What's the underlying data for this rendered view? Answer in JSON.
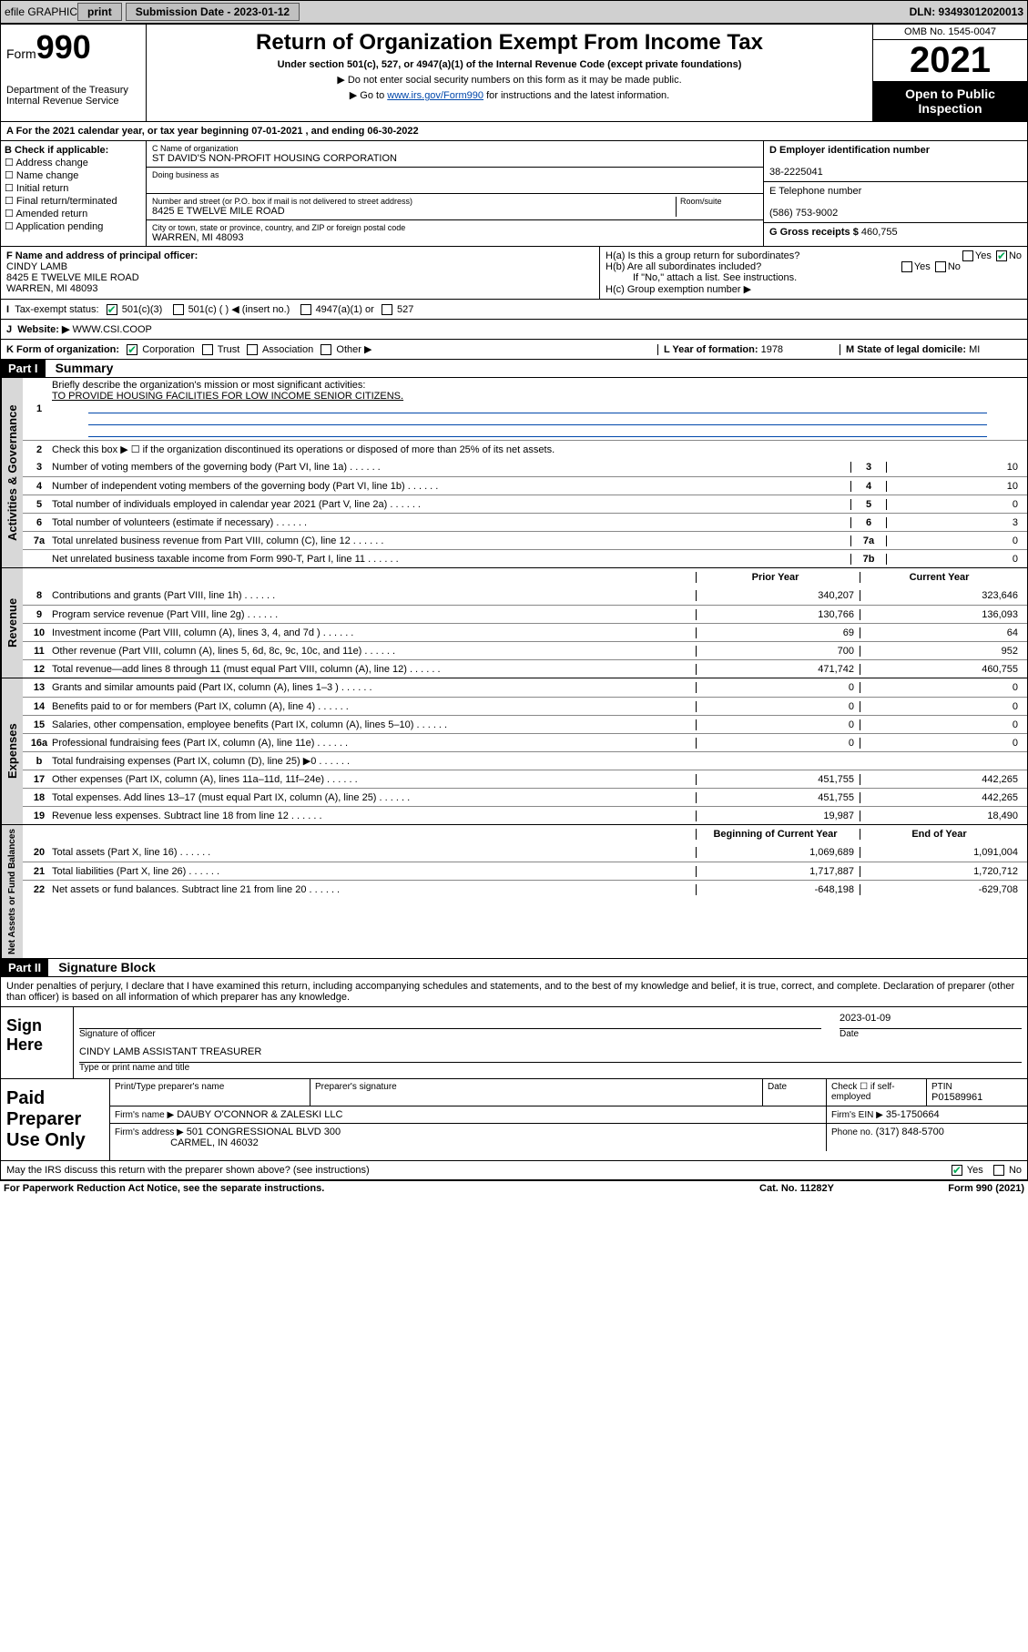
{
  "topbar": {
    "efile": "efile GRAPHIC",
    "print": "print",
    "sub_label": "Submission Date - 2023-01-12",
    "dln": "DLN: 93493012020013"
  },
  "header": {
    "form": "Form",
    "formnum": "990",
    "dept": "Department of the Treasury",
    "irs": "Internal Revenue Service",
    "title": "Return of Organization Exempt From Income Tax",
    "sub": "Under section 501(c), 527, or 4947(a)(1) of the Internal Revenue Code (except private foundations)",
    "note1": "▶ Do not enter social security numbers on this form as it may be made public.",
    "note2_pre": "▶ Go to ",
    "note2_link": "www.irs.gov/Form990",
    "note2_post": " for instructions and the latest information.",
    "omb": "OMB No. 1545-0047",
    "year": "2021",
    "otp": "Open to Public Inspection"
  },
  "a": {
    "text": "A For the 2021 calendar year, or tax year beginning 07-01-2021  , and ending 06-30-2022"
  },
  "b": {
    "title": "B Check if applicable:",
    "opts": [
      "Address change",
      "Name change",
      "Initial return",
      "Final return/terminated",
      "Amended return",
      "Application pending"
    ]
  },
  "c": {
    "lbl": "C Name of organization",
    "name": "ST DAVID'S NON-PROFIT HOUSING CORPORATION",
    "dba_lbl": "Doing business as",
    "addr_lbl": "Number and street (or P.O. box if mail is not delivered to street address)",
    "room_lbl": "Room/suite",
    "addr": "8425 E TWELVE MILE ROAD",
    "city_lbl": "City or town, state or province, country, and ZIP or foreign postal code",
    "city": "WARREN, MI  48093"
  },
  "d": {
    "lbl": "D Employer identification number",
    "val": "38-2225041"
  },
  "e": {
    "lbl": "E Telephone number",
    "val": "(586) 753-9002"
  },
  "g": {
    "lbl": "G Gross receipts $",
    "val": "460,755"
  },
  "f": {
    "lbl": "F Name and address of principal officer:",
    "name": "CINDY LAMB",
    "addr1": "8425 E TWELVE MILE ROAD",
    "addr2": "WARREN, MI  48093"
  },
  "h": {
    "a": "H(a)  Is this a group return for subordinates?",
    "b": "H(b)  Are all subordinates included?",
    "note": "If \"No,\" attach a list. See instructions.",
    "c": "H(c)  Group exemption number ▶",
    "yes": "Yes",
    "no": "No"
  },
  "i": {
    "lbl": "Tax-exempt status:",
    "o1": "501(c)(3)",
    "o2": "501(c) (  ) ◀ (insert no.)",
    "o3": "4947(a)(1) or",
    "o4": "527"
  },
  "j": {
    "lbl": "Website: ▶",
    "val": "WWW.CSI.COOP"
  },
  "k": {
    "lbl": "K Form of organization:",
    "o1": "Corporation",
    "o2": "Trust",
    "o3": "Association",
    "o4": "Other ▶"
  },
  "l": {
    "lbl": "L Year of formation:",
    "val": "1978"
  },
  "m": {
    "lbl": "M State of legal domicile:",
    "val": "MI"
  },
  "part1": {
    "hdr": "Part I",
    "title": "Summary"
  },
  "summary": {
    "q1": "Briefly describe the organization's mission or most significant activities:",
    "mission": "TO PROVIDE HOUSING FACILITIES FOR LOW INCOME SENIOR CITIZENS.",
    "q2": "Check this box ▶ ☐ if the organization discontinued its operations or disposed of more than 25% of its net assets.",
    "lines_gov": [
      {
        "n": "3",
        "t": "Number of voting members of the governing body (Part VI, line 1a)",
        "k": "3",
        "v": "10"
      },
      {
        "n": "4",
        "t": "Number of independent voting members of the governing body (Part VI, line 1b)",
        "k": "4",
        "v": "10"
      },
      {
        "n": "5",
        "t": "Total number of individuals employed in calendar year 2021 (Part V, line 2a)",
        "k": "5",
        "v": "0"
      },
      {
        "n": "6",
        "t": "Total number of volunteers (estimate if necessary)",
        "k": "6",
        "v": "3"
      },
      {
        "n": "7a",
        "t": "Total unrelated business revenue from Part VIII, column (C), line 12",
        "k": "7a",
        "v": "0"
      },
      {
        "n": "",
        "t": "Net unrelated business taxable income from Form 990-T, Part I, line 11",
        "k": "7b",
        "v": "0"
      }
    ],
    "col_prior": "Prior Year",
    "col_curr": "Current Year",
    "revenue": [
      {
        "n": "8",
        "t": "Contributions and grants (Part VIII, line 1h)",
        "p": "340,207",
        "c": "323,646"
      },
      {
        "n": "9",
        "t": "Program service revenue (Part VIII, line 2g)",
        "p": "130,766",
        "c": "136,093"
      },
      {
        "n": "10",
        "t": "Investment income (Part VIII, column (A), lines 3, 4, and 7d )",
        "p": "69",
        "c": "64"
      },
      {
        "n": "11",
        "t": "Other revenue (Part VIII, column (A), lines 5, 6d, 8c, 9c, 10c, and 11e)",
        "p": "700",
        "c": "952"
      },
      {
        "n": "12",
        "t": "Total revenue—add lines 8 through 11 (must equal Part VIII, column (A), line 12)",
        "p": "471,742",
        "c": "460,755"
      }
    ],
    "expenses": [
      {
        "n": "13",
        "t": "Grants and similar amounts paid (Part IX, column (A), lines 1–3 )",
        "p": "0",
        "c": "0"
      },
      {
        "n": "14",
        "t": "Benefits paid to or for members (Part IX, column (A), line 4)",
        "p": "0",
        "c": "0"
      },
      {
        "n": "15",
        "t": "Salaries, other compensation, employee benefits (Part IX, column (A), lines 5–10)",
        "p": "0",
        "c": "0"
      },
      {
        "n": "16a",
        "t": "Professional fundraising fees (Part IX, column (A), line 11e)",
        "p": "0",
        "c": "0"
      },
      {
        "n": "b",
        "t": "Total fundraising expenses (Part IX, column (D), line 25) ▶0",
        "p": "",
        "c": "",
        "shade": true
      },
      {
        "n": "17",
        "t": "Other expenses (Part IX, column (A), lines 11a–11d, 11f–24e)",
        "p": "451,755",
        "c": "442,265"
      },
      {
        "n": "18",
        "t": "Total expenses. Add lines 13–17 (must equal Part IX, column (A), line 25)",
        "p": "451,755",
        "c": "442,265"
      },
      {
        "n": "19",
        "t": "Revenue less expenses. Subtract line 18 from line 12",
        "p": "19,987",
        "c": "18,490"
      }
    ],
    "col_beg": "Beginning of Current Year",
    "col_end": "End of Year",
    "netassets": [
      {
        "n": "20",
        "t": "Total assets (Part X, line 16)",
        "p": "1,069,689",
        "c": "1,091,004"
      },
      {
        "n": "21",
        "t": "Total liabilities (Part X, line 26)",
        "p": "1,717,887",
        "c": "1,720,712"
      },
      {
        "n": "22",
        "t": "Net assets or fund balances. Subtract line 21 from line 20",
        "p": "-648,198",
        "c": "-629,708"
      }
    ]
  },
  "side_labels": {
    "gov": "Activities & Governance",
    "rev": "Revenue",
    "exp": "Expenses",
    "net": "Net Assets or Fund Balances"
  },
  "part2": {
    "hdr": "Part II",
    "title": "Signature Block"
  },
  "sig": {
    "penalty": "Under penalties of perjury, I declare that I have examined this return, including accompanying schedules and statements, and to the best of my knowledge and belief, it is true, correct, and complete. Declaration of preparer (other than officer) is based on all information of which preparer has any knowledge.",
    "here": "Sign Here",
    "sigoff": "Signature of officer",
    "date": "Date",
    "dateval": "2023-01-09",
    "name": "CINDY LAMB  ASSISTANT TREASURER",
    "typelbl": "Type or print name and title"
  },
  "prep": {
    "title": "Paid Preparer Use Only",
    "h1": "Print/Type preparer's name",
    "h2": "Preparer's signature",
    "h3": "Date",
    "h4a": "Check ☐ if self-employed",
    "h4b": "PTIN",
    "ptin": "P01589961",
    "firm_lbl": "Firm's name   ▶",
    "firm": "DAUBY O'CONNOR & ZALESKI LLC",
    "ein_lbl": "Firm's EIN ▶",
    "ein": "35-1750664",
    "addr_lbl": "Firm's address ▶",
    "addr1": "501 CONGRESSIONAL BLVD 300",
    "addr2": "CARMEL, IN  46032",
    "phone_lbl": "Phone no.",
    "phone": "(317) 848-5700",
    "discuss": "May the IRS discuss this return with the preparer shown above? (see instructions)"
  },
  "footer": {
    "l": "For Paperwork Reduction Act Notice, see the separate instructions.",
    "m": "Cat. No. 11282Y",
    "r": "Form 990 (2021)"
  }
}
